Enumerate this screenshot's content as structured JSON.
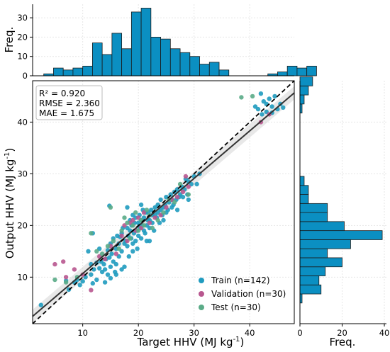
{
  "chart_data": [
    {
      "id": "scatter",
      "type": "scatter",
      "xlabel": "Target HHV",
      "xlabel_unit": "(MJ kg",
      "ylabel": "Output HHV",
      "ylabel_unit": "(MJ kg",
      "unit_exponent": "-1",
      "unit_close": ")",
      "xlim": [
        1,
        48
      ],
      "ylim": [
        1,
        48
      ],
      "xticks": [
        "10",
        "20",
        "30",
        "40"
      ],
      "yticks": [
        "10",
        "20",
        "30",
        "40"
      ],
      "grid": true,
      "stats": [
        "R² = 0.920",
        "RMSE = 2.360",
        "MAE = 1.675"
      ],
      "fit_line": {
        "slope": 0.92,
        "intercept": 1.5
      },
      "identity_line": true,
      "legend_position": "bottom-right",
      "series": [
        {
          "name": "Train (n=142)",
          "color": "#1f9bbf",
          "points": [
            [
              2.5,
              4.6
            ],
            [
              7.0,
              9.3
            ],
            [
              7.5,
              7.6
            ],
            [
              8.5,
              9.0
            ],
            [
              9.0,
              9.5
            ],
            [
              9.5,
              8.5
            ],
            [
              10.0,
              9.2
            ],
            [
              10.5,
              10.0
            ],
            [
              11.0,
              15.0
            ],
            [
              11.5,
              12.5
            ],
            [
              11.5,
              10.5
            ],
            [
              11.8,
              8.8
            ],
            [
              12.0,
              11.5
            ],
            [
              12.5,
              12.8
            ],
            [
              13.0,
              11.7
            ],
            [
              13.0,
              15.5
            ],
            [
              13.3,
              13.0
            ],
            [
              13.5,
              11.0
            ],
            [
              13.8,
              12.5
            ],
            [
              14.0,
              11.5
            ],
            [
              14.2,
              13.5
            ],
            [
              14.5,
              15.2
            ],
            [
              14.5,
              10.5
            ],
            [
              14.8,
              13.8
            ],
            [
              15.0,
              16.5
            ],
            [
              15.0,
              12.0
            ],
            [
              15.2,
              14.5
            ],
            [
              15.5,
              17.5
            ],
            [
              15.5,
              13.0
            ],
            [
              15.8,
              11.0
            ],
            [
              16.0,
              15.5
            ],
            [
              16.0,
              12.5
            ],
            [
              16.2,
              18.0
            ],
            [
              16.5,
              16.5
            ],
            [
              16.5,
              14.0
            ],
            [
              16.7,
              17.8
            ],
            [
              17.0,
              18.5
            ],
            [
              17.0,
              15.0
            ],
            [
              17.2,
              19.5
            ],
            [
              17.5,
              16.5
            ],
            [
              17.5,
              12.0
            ],
            [
              17.7,
              17.0
            ],
            [
              18.0,
              19.5
            ],
            [
              18.0,
              16.0
            ],
            [
              18.2,
              18.0
            ],
            [
              18.3,
              14.0
            ],
            [
              18.5,
              21.0
            ],
            [
              18.5,
              19.0
            ],
            [
              18.7,
              17.5
            ],
            [
              18.8,
              20.0
            ],
            [
              19.0,
              22.0
            ],
            [
              19.0,
              16.5
            ],
            [
              19.2,
              18.5
            ],
            [
              19.3,
              20.5
            ],
            [
              19.5,
              17.0
            ],
            [
              19.5,
              21.5
            ],
            [
              19.7,
              19.0
            ],
            [
              19.8,
              15.5
            ],
            [
              20.0,
              20.5
            ],
            [
              20.0,
              18.0
            ],
            [
              20.2,
              22.0
            ],
            [
              20.3,
              19.5
            ],
            [
              20.5,
              17.5
            ],
            [
              20.5,
              21.0
            ],
            [
              20.7,
              20.0
            ],
            [
              20.8,
              23.0
            ],
            [
              21.0,
              19.0
            ],
            [
              21.0,
              21.5
            ],
            [
              21.2,
              18.5
            ],
            [
              21.3,
              22.5
            ],
            [
              21.5,
              20.0
            ],
            [
              21.5,
              17.0
            ],
            [
              21.7,
              21.0
            ],
            [
              21.8,
              22.5
            ],
            [
              22.0,
              19.5
            ],
            [
              22.0,
              21.0
            ],
            [
              22.3,
              23.0
            ],
            [
              22.5,
              20.5
            ],
            [
              22.5,
              22.0
            ],
            [
              22.8,
              19.0
            ],
            [
              23.0,
              22.0
            ],
            [
              23.0,
              23.5
            ],
            [
              23.3,
              21.5
            ],
            [
              23.5,
              22.5
            ],
            [
              23.5,
              24.0
            ],
            [
              23.8,
              20.5
            ],
            [
              24.0,
              23.0
            ],
            [
              24.0,
              25.0
            ],
            [
              24.3,
              22.0
            ],
            [
              24.5,
              23.5
            ],
            [
              24.5,
              21.0
            ],
            [
              24.8,
              24.0
            ],
            [
              25.0,
              25.5
            ],
            [
              25.0,
              22.5
            ],
            [
              25.3,
              23.0
            ],
            [
              25.5,
              24.5
            ],
            [
              25.8,
              26.0
            ],
            [
              26.0,
              23.5
            ],
            [
              26.0,
              25.0
            ],
            [
              26.3,
              24.0
            ],
            [
              26.5,
              26.5
            ],
            [
              26.8,
              25.0
            ],
            [
              27.0,
              27.0
            ],
            [
              27.0,
              23.0
            ],
            [
              27.3,
              25.5
            ],
            [
              27.5,
              26.0
            ],
            [
              27.8,
              27.5
            ],
            [
              28.0,
              25.5
            ],
            [
              28.3,
              27.0
            ],
            [
              28.5,
              29.0
            ],
            [
              28.8,
              26.0
            ],
            [
              29.0,
              28.5
            ],
            [
              29.0,
              25.0
            ],
            [
              29.5,
              28.0
            ],
            [
              30.0,
              29.5
            ],
            [
              30.5,
              28.0
            ],
            [
              31.0,
              30.0
            ],
            [
              16.0,
              10.5
            ],
            [
              15.0,
              9.8
            ],
            [
              17.0,
              11.5
            ],
            [
              19.0,
              15.0
            ],
            [
              12.5,
              9.5
            ],
            [
              14.0,
              9.0
            ],
            [
              22.0,
              17.0
            ],
            [
              20.5,
              24.0
            ],
            [
              18.0,
              23.5
            ],
            [
              41.0,
              43.0
            ],
            [
              41.5,
              42.5
            ],
            [
              42.0,
              45.5
            ],
            [
              42.5,
              44.0
            ],
            [
              43.0,
              43.5
            ],
            [
              43.0,
              42.0
            ],
            [
              43.5,
              44.5
            ],
            [
              44.0,
              43.0
            ],
            [
              44.5,
              45.0
            ],
            [
              45.0,
              42.5
            ],
            [
              45.5,
              43.5
            ],
            [
              46.0,
              42.8
            ],
            [
              42.2,
              41.5
            ],
            [
              44.0,
              41.8
            ],
            [
              14.8,
              23.8
            ],
            [
              11.8,
              18.5
            ]
          ]
        },
        {
          "name": "Validation (n=30)",
          "color": "#b8578f",
          "points": [
            [
              5.0,
              12.5
            ],
            [
              6.5,
              13.0
            ],
            [
              7.0,
              10.0
            ],
            [
              8.5,
              11.5
            ],
            [
              10.0,
              10.5
            ],
            [
              11.5,
              7.5
            ],
            [
              13.0,
              14.0
            ],
            [
              14.0,
              13.5
            ],
            [
              15.0,
              16.0
            ],
            [
              16.0,
              14.5
            ],
            [
              17.0,
              18.0
            ],
            [
              17.5,
              20.0
            ],
            [
              18.0,
              17.0
            ],
            [
              18.5,
              20.5
            ],
            [
              19.0,
              21.0
            ],
            [
              19.5,
              19.0
            ],
            [
              20.0,
              21.5
            ],
            [
              20.5,
              19.5
            ],
            [
              21.0,
              22.5
            ],
            [
              22.0,
              20.5
            ],
            [
              23.0,
              21.5
            ],
            [
              24.0,
              22.0
            ],
            [
              25.0,
              23.5
            ],
            [
              26.0,
              25.0
            ],
            [
              27.0,
              25.5
            ],
            [
              28.0,
              26.5
            ],
            [
              28.5,
              29.5
            ],
            [
              29.0,
              27.5
            ],
            [
              42.0,
              40.0
            ],
            [
              43.5,
              41.5
            ]
          ]
        },
        {
          "name": "Test (n=30)",
          "color": "#5aab87",
          "points": [
            [
              5.0,
              9.5
            ],
            [
              7.0,
              9.0
            ],
            [
              9.0,
              10.0
            ],
            [
              11.5,
              18.5
            ],
            [
              12.5,
              15.0
            ],
            [
              13.5,
              14.5
            ],
            [
              14.5,
              16.0
            ],
            [
              15.0,
              23.5
            ],
            [
              15.5,
              17.0
            ],
            [
              16.5,
              15.5
            ],
            [
              17.0,
              19.0
            ],
            [
              17.5,
              21.5
            ],
            [
              18.0,
              20.5
            ],
            [
              18.5,
              17.5
            ],
            [
              19.0,
              20.0
            ],
            [
              19.5,
              22.5
            ],
            [
              20.0,
              19.0
            ],
            [
              20.5,
              21.0
            ],
            [
              21.0,
              20.0
            ],
            [
              21.5,
              23.0
            ],
            [
              22.0,
              22.0
            ],
            [
              22.5,
              19.5
            ],
            [
              23.5,
              21.0
            ],
            [
              24.5,
              22.5
            ],
            [
              25.5,
              25.0
            ],
            [
              26.5,
              24.5
            ],
            [
              27.5,
              28.0
            ],
            [
              29.0,
              26.0
            ],
            [
              38.5,
              44.8
            ],
            [
              40.5,
              45.0
            ]
          ]
        }
      ]
    },
    {
      "id": "top-histogram",
      "type": "bar",
      "ylabel": "Freq.",
      "bin_width": 1.75,
      "bin_start": 3.0,
      "values": [
        1,
        4,
        3,
        4,
        5,
        17,
        11,
        22,
        14,
        33,
        35,
        20,
        19,
        14,
        12,
        10,
        6,
        7,
        3,
        0,
        0,
        0,
        0,
        1,
        2,
        5,
        4,
        5
      ],
      "ylim": [
        0,
        37
      ],
      "yticks": [
        "0",
        "10",
        "20",
        "30"
      ],
      "color": "#0b8fc2"
    },
    {
      "id": "right-histogram",
      "type": "bar",
      "orientation": "horizontal",
      "xlabel": "Freq.",
      "bin_width": 1.75,
      "bin_start": 5.0,
      "values": [
        1,
        10,
        9,
        12,
        20,
        13,
        24,
        39,
        21,
        13,
        13,
        4,
        4,
        2,
        0,
        0,
        0,
        0,
        0,
        0,
        0,
        1,
        2,
        4,
        6
      ],
      "xlim": [
        0,
        41
      ],
      "xticks": [
        "0",
        "20",
        "40"
      ],
      "color": "#0b8fc2"
    }
  ]
}
